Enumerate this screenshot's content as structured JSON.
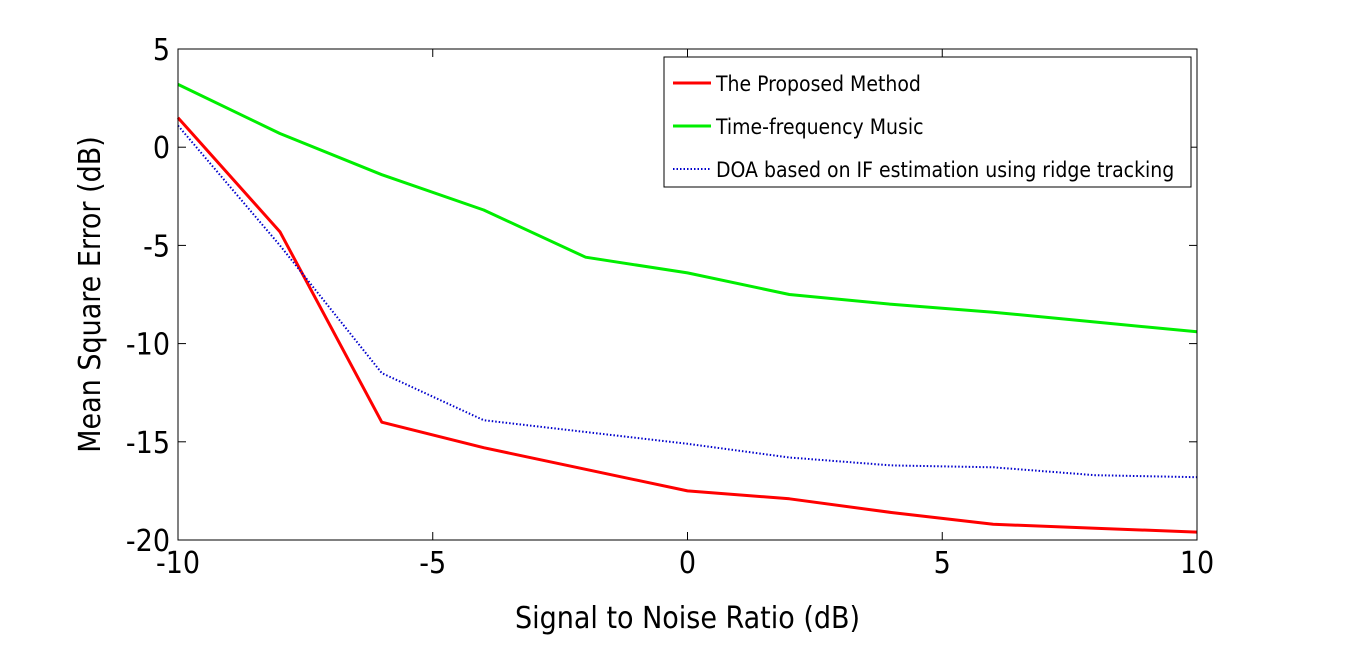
{
  "chart_data": {
    "type": "line",
    "title": "",
    "xlabel": "Signal to Noise Ratio (dB)",
    "ylabel": "Mean Square Error (dB)",
    "xlim": [
      -10,
      10
    ],
    "ylim": [
      -20,
      5
    ],
    "xticks": [
      -10,
      -5,
      0,
      5,
      10
    ],
    "yticks": [
      -20,
      -15,
      -10,
      -5,
      0,
      5
    ],
    "grid": false,
    "legend_position": "top-right",
    "series": [
      {
        "name": "The Proposed Method",
        "color": "#ff0000",
        "style": "solid",
        "x": [
          -10,
          -8,
          -6,
          -4,
          -2,
          0,
          2,
          4,
          6,
          8,
          10
        ],
        "y": [
          1.5,
          -4.3,
          -14.0,
          -15.3,
          -16.4,
          -17.5,
          -17.9,
          -18.6,
          -19.2,
          -19.4,
          -19.6
        ]
      },
      {
        "name": "Time-frequency Music",
        "color": "#00ee00",
        "style": "solid",
        "x": [
          -10,
          -8,
          -6,
          -4,
          -2,
          0,
          2,
          4,
          6,
          8,
          10
        ],
        "y": [
          3.2,
          0.7,
          -1.4,
          -3.2,
          -5.6,
          -6.4,
          -7.5,
          -8.0,
          -8.4,
          -8.9,
          -9.4
        ]
      },
      {
        "name": "DOA based on IF estimation using ridge tracking",
        "color": "#0000cc",
        "style": "dotted",
        "x": [
          -10,
          -8,
          -6,
          -4,
          -2,
          0,
          2,
          4,
          6,
          8,
          10
        ],
        "y": [
          1.1,
          -5.0,
          -11.5,
          -13.9,
          -14.5,
          -15.1,
          -15.8,
          -16.2,
          -16.3,
          -16.7,
          -16.8
        ]
      }
    ]
  }
}
